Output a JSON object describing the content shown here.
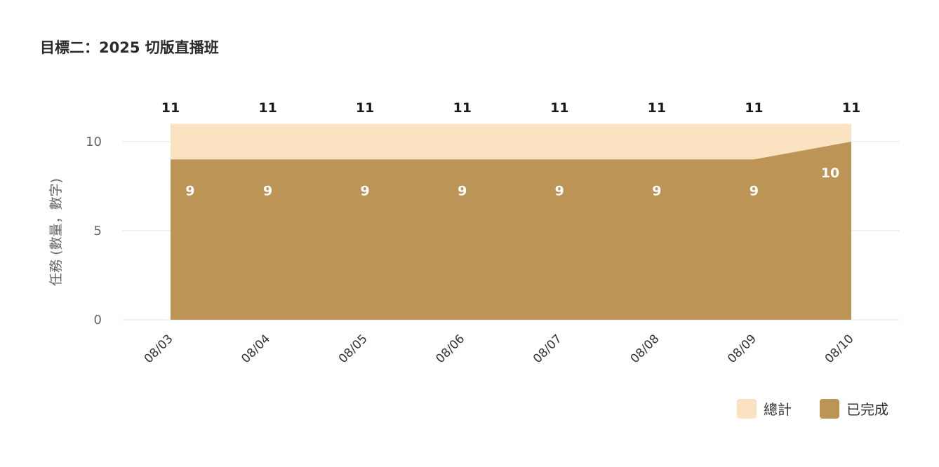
{
  "title": "目標二：2025 切版直播班",
  "chart_data": {
    "type": "area",
    "title": "目標二：2025 切版直播班",
    "ylabel": "任務 (數量，數字)",
    "xlabel": "",
    "categories": [
      "08/03",
      "08/04",
      "08/05",
      "08/06",
      "08/07",
      "08/08",
      "08/09",
      "08/10"
    ],
    "ylim": [
      0,
      11
    ],
    "yticks": [
      0,
      5,
      10
    ],
    "grid": true,
    "legend_position": "bottom-right",
    "series": [
      {
        "name": "總計",
        "values": [
          11,
          11,
          11,
          11,
          11,
          11,
          11,
          11
        ],
        "color": "#fbe2c0"
      },
      {
        "name": "已完成",
        "values": [
          9,
          9,
          9,
          9,
          9,
          9,
          9,
          10
        ],
        "color": "#bc9456"
      }
    ]
  }
}
